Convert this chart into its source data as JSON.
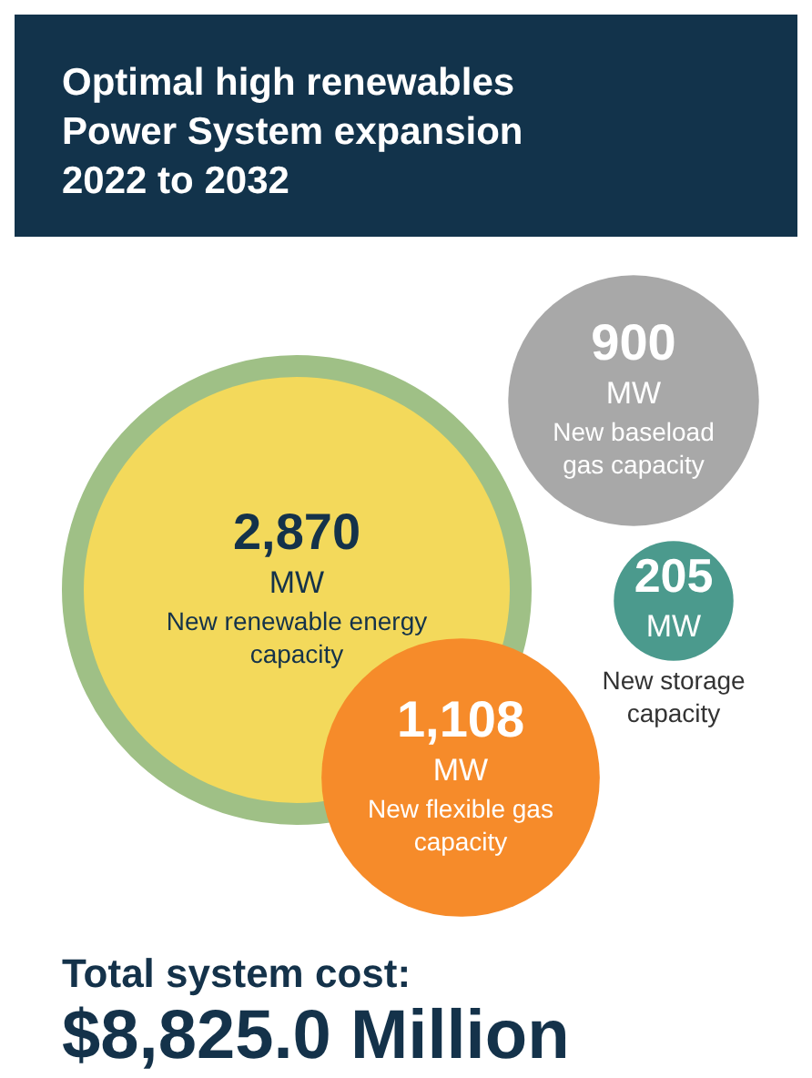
{
  "chart_data": {
    "type": "other",
    "title": "Optimal high renewables Power System expansion 2022 to 2032",
    "categories": [
      "New renewable energy capacity",
      "New baseload gas capacity",
      "New storage capacity",
      "New flexible gas capacity"
    ],
    "values": [
      2870,
      900,
      205,
      1108
    ],
    "value_labels": [
      "2,870 MW",
      "900 MW",
      "205 MW",
      "1,108 MW"
    ],
    "colors": [
      "#f3d95b",
      "#a8a8a8",
      "#4b9a8d",
      "#f68b2a"
    ],
    "annotations": [
      "Total system cost:",
      "$8,825.0 Million"
    ]
  }
}
